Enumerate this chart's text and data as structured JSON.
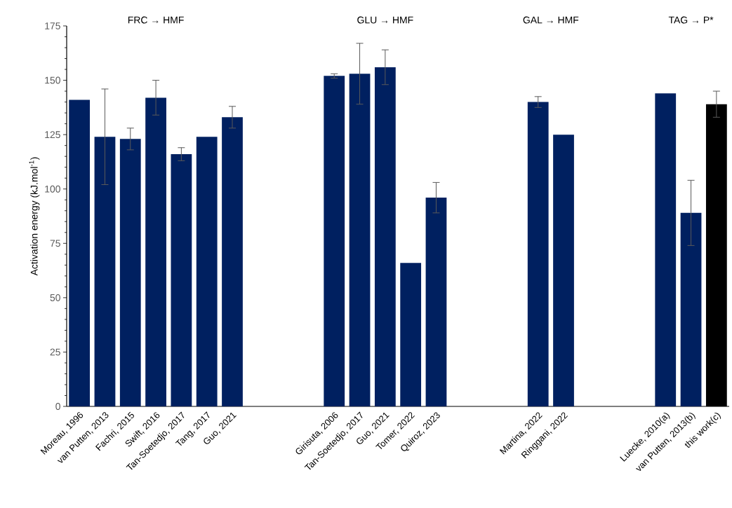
{
  "chart_data": {
    "type": "bar",
    "ylabel": "Activation energy (kJ.mol$^{-1}$)",
    "annotations": [
      "FRC → HMF",
      "GLU → HMF",
      "GAL → HMF",
      "TAG → P*"
    ],
    "categories": [
      "Moreau, 1996",
      "van Putten, 2013",
      "Fachri, 2015",
      "Swift, 2016",
      "Tan-Soetedjo, 2017",
      "Tang, 2017",
      "Guo, 2021",
      null,
      null,
      null,
      "Girisuta, 2006",
      "Tan-Soetedjo, 2017",
      "Guo, 2021",
      "Tomer, 2022",
      "Quiroz, 2023",
      null,
      null,
      null,
      "Martina, 2022",
      "Ringgani, 2022",
      null,
      null,
      null,
      "Luecke, 2010(a)",
      "van Putten, 2013(b)",
      "this work(c)"
    ],
    "values": [
      141,
      124,
      123,
      142,
      116,
      124,
      133,
      null,
      null,
      null,
      152,
      153,
      156,
      66,
      96,
      null,
      null,
      null,
      140,
      125,
      null,
      null,
      null,
      144,
      89,
      139
    ],
    "errors": [
      null,
      22,
      5,
      8,
      3,
      null,
      5,
      null,
      null,
      null,
      1,
      14,
      8,
      null,
      7,
      null,
      null,
      null,
      2.5,
      null,
      null,
      null,
      null,
      null,
      15,
      6
    ],
    "colors": [
      "#002060",
      "#002060",
      "#002060",
      "#002060",
      "#002060",
      "#002060",
      "#002060",
      null,
      null,
      null,
      "#002060",
      "#002060",
      "#002060",
      "#002060",
      "#002060",
      null,
      null,
      null,
      "#002060",
      "#002060",
      null,
      null,
      null,
      "#002060",
      "#002060",
      "#000000"
    ],
    "ylim": [
      0,
      175
    ],
    "yticks": [
      0,
      25,
      50,
      75,
      100,
      125,
      150,
      175
    ]
  }
}
